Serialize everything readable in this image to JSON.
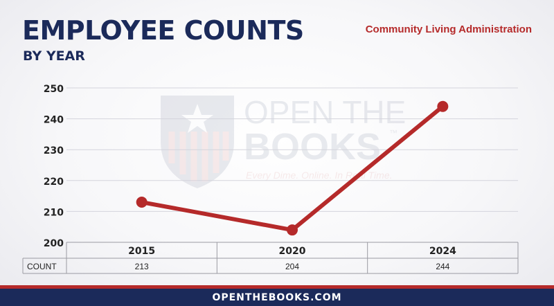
{
  "header": {
    "title": "EMPLOYEE COUNTS",
    "subtitle": "BY YEAR",
    "organization": "Community Living Administration"
  },
  "watermark": {
    "line1": "OPEN THE",
    "line2": "BOOKS",
    "tm": "™",
    "tagline": "Every Dime. Online. In Real Time."
  },
  "chart_data": {
    "type": "line",
    "categories": [
      "2015",
      "2020",
      "2024"
    ],
    "series": [
      {
        "values": [
          213,
          204,
          244
        ],
        "color": "#b52a2a"
      }
    ],
    "ylim": [
      200,
      250
    ],
    "yticks": [
      200,
      210,
      220,
      230,
      240,
      250
    ],
    "grid": true,
    "table": {
      "row_label": "COUNT",
      "values": [
        "213",
        "204",
        "244"
      ]
    }
  },
  "footer": {
    "text": "OPENTHEBOOKS.COM"
  },
  "colors": {
    "navy": "#1b2a5a",
    "red": "#b52a2a"
  }
}
